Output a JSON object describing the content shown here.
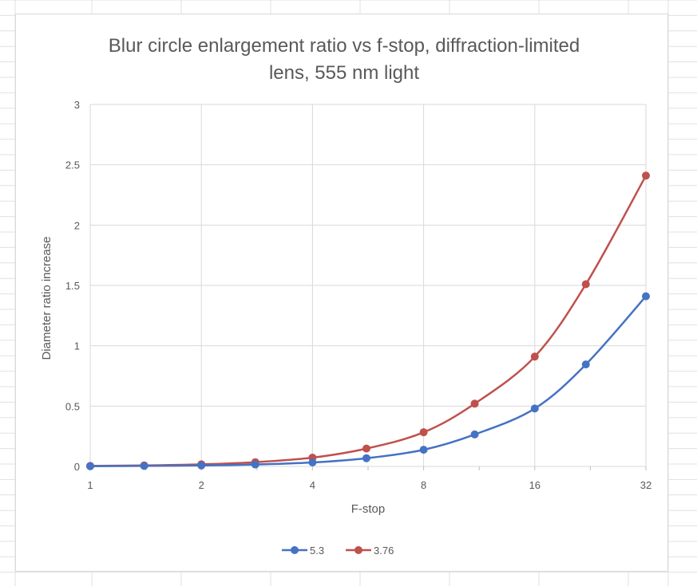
{
  "chart_data": {
    "type": "line",
    "title": "Blur circle enlargement ratio vs f-stop, diffraction-limited lens, 555 nm light",
    "title_lines": [
      "Blur circle enlargement ratio vs f-stop, diffraction-limited",
      "lens, 555 nm light"
    ],
    "xlabel": "F-stop",
    "ylabel": "Diameter ratio increase",
    "x_scale": "log2",
    "xlim": [
      1,
      32
    ],
    "ylim": [
      0,
      3
    ],
    "x_ticks": [
      1,
      2,
      4,
      8,
      16,
      32
    ],
    "x_tick_labels": [
      "1",
      "2",
      "4",
      "8",
      "16",
      "32"
    ],
    "y_ticks": [
      0,
      0.5,
      1,
      1.5,
      2,
      2.5,
      3
    ],
    "y_tick_labels": [
      "0",
      "0.5",
      "1",
      "1.5",
      "2",
      "2.5",
      "3"
    ],
    "x": [
      1,
      1.4,
      2,
      2.8,
      4,
      5.6,
      8,
      11,
      16,
      22,
      32
    ],
    "series": [
      {
        "name": "5.3",
        "color": "#4472c4",
        "values": [
          0.002,
          0.004,
          0.008,
          0.016,
          0.033,
          0.068,
          0.138,
          0.265,
          0.48,
          0.845,
          1.41
        ]
      },
      {
        "name": "3.76",
        "color": "#c0504d",
        "values": [
          0.004,
          0.008,
          0.017,
          0.035,
          0.073,
          0.148,
          0.283,
          0.52,
          0.91,
          1.51,
          2.41
        ]
      }
    ],
    "grid": true,
    "legend_position": "bottom"
  }
}
